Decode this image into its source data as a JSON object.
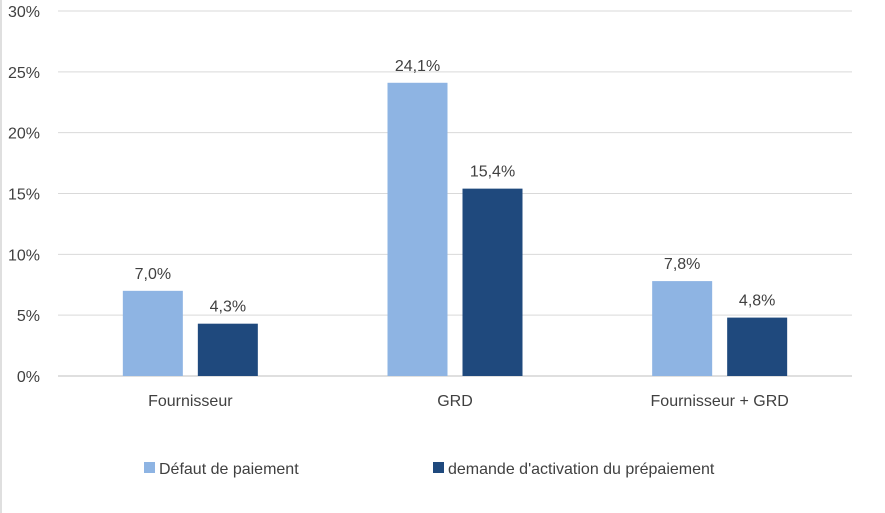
{
  "chart_data": {
    "type": "bar",
    "categories": [
      "Fournisseur",
      "GRD",
      "Fournisseur + GRD"
    ],
    "series": [
      {
        "name": "Défaut de paiement",
        "values": [
          7.0,
          24.1,
          7.8
        ],
        "labels": [
          "7,0%",
          "24,1%",
          "7,8%"
        ],
        "color": "#8eb4e3"
      },
      {
        "name": "demande d'activation du prépaiement",
        "values": [
          4.3,
          15.4,
          4.8
        ],
        "labels": [
          "4,3%",
          "15,4%",
          "4,8%"
        ],
        "color": "#1f497d"
      }
    ],
    "ylim": [
      0,
      30
    ],
    "yticks": [
      0,
      5,
      10,
      15,
      20,
      25,
      30
    ],
    "ytick_labels": [
      "0%",
      "5%",
      "10%",
      "15%",
      "20%",
      "25%",
      "30%"
    ],
    "grid": true,
    "legend": "bottom",
    "title": "",
    "xlabel": "",
    "ylabel": ""
  },
  "colors": {
    "grid": "#d9d9d9",
    "axis": "#bfbfbf",
    "text": "#404040"
  }
}
